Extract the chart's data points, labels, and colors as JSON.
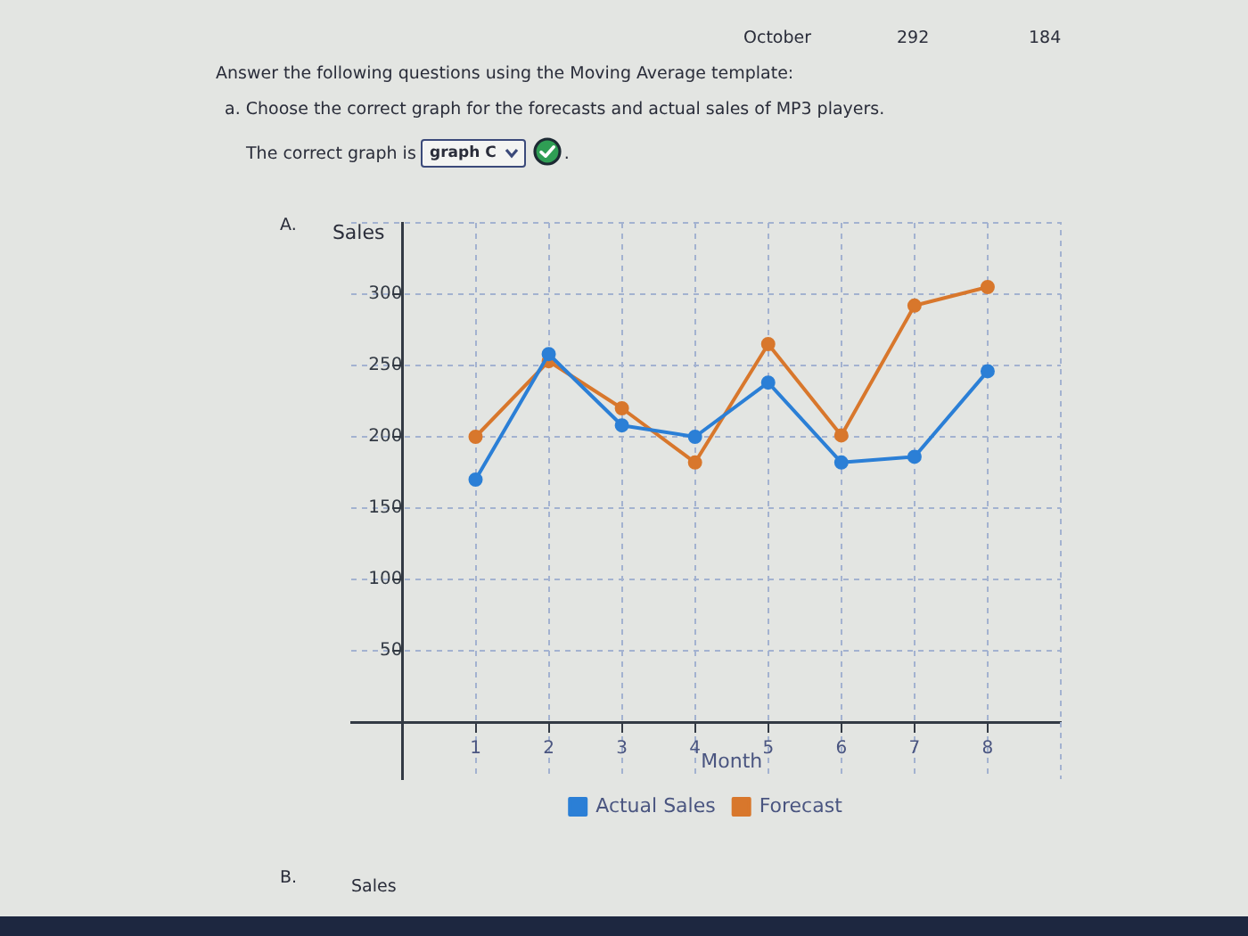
{
  "chart_data": {
    "type": "line",
    "xlabel": "Month",
    "ylabel": "Sales",
    "x": [
      1,
      2,
      3,
      4,
      5,
      6,
      7,
      8
    ],
    "series": [
      {
        "name": "Actual Sales",
        "color": "#2b7fd6",
        "values": [
          170,
          258,
          208,
          200,
          238,
          182,
          186,
          246
        ]
      },
      {
        "name": "Forecast",
        "color": "#d8772c",
        "values": [
          200,
          253,
          220,
          182,
          265,
          201,
          292,
          305
        ]
      }
    ],
    "xlim": [
      -0.7,
      9
    ],
    "ylim": [
      -40,
      350
    ],
    "xticks": [
      1,
      2,
      3,
      4,
      5,
      6,
      7,
      8
    ],
    "yticks": [
      50,
      100,
      150,
      200,
      250,
      300
    ],
    "grid": true,
    "legend": "bottom",
    "marker": "circle",
    "line_style": "solid",
    "annotations": [
      "October",
      "292",
      "184",
      "Answer the following questions using the Moving Average template:",
      "a. Choose the correct graph for the forecasts and actual sales of MP3 players.",
      "The correct graph is",
      "graph C",
      ".",
      "A.",
      "B.",
      "Sales"
    ]
  }
}
